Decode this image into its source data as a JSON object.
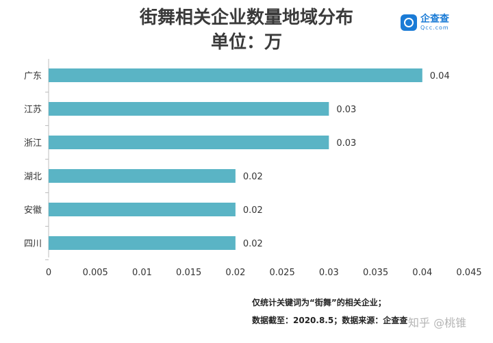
{
  "chart_data": {
    "type": "bar",
    "orientation": "horizontal",
    "title": "街舞相关企业数量地域分布",
    "subtitle": "单位：万",
    "categories": [
      "广东",
      "江苏",
      "浙江",
      "湖北",
      "安徽",
      "四川"
    ],
    "values": [
      0.04,
      0.03,
      0.03,
      0.02,
      0.02,
      0.02
    ],
    "value_labels": [
      "0.04",
      "0.03",
      "0.03",
      "0.02",
      "0.02",
      "0.02"
    ],
    "xlim": [
      0,
      0.045
    ],
    "x_ticks": [
      "0",
      "0.005",
      "0.01",
      "0.015",
      "0.02",
      "0.025",
      "0.03",
      "0.035",
      "0.04",
      "0.045"
    ],
    "bar_color": "#5ab4c5",
    "grid": false
  },
  "logo": {
    "cn": "企查查",
    "en": "Qcc.com"
  },
  "notes": {
    "line1": "仅统计关键词为“街舞”的相关企业；",
    "line2": "数据截至：2020.8.5；数据来源：企查查"
  },
  "watermark": "知乎 @桃锥"
}
